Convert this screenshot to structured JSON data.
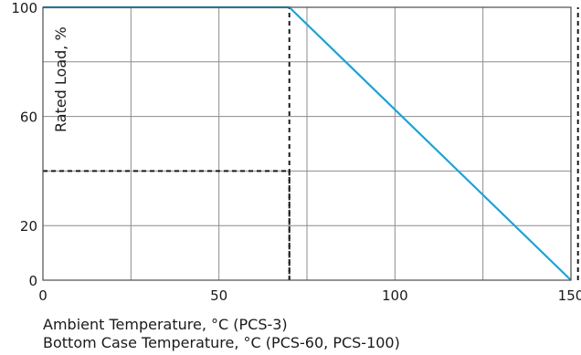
{
  "chart_data": {
    "type": "line",
    "title": "",
    "xlabel_lines": [
      "Ambient Temperature, °C (PCS-3)",
      "Bottom Case Temperature, °C (PCS-60, PCS-100)"
    ],
    "ylabel": "Rated Load, %",
    "xlim": [
      0,
      150
    ],
    "ylim": [
      0,
      100
    ],
    "x_ticks": [
      {
        "value": 0,
        "label": "0"
      },
      {
        "value": 50,
        "label": "50"
      },
      {
        "value": 100,
        "label": "100"
      },
      {
        "value": 150,
        "label": "150"
      }
    ],
    "y_ticks": [
      {
        "value": 0,
        "label": "0"
      },
      {
        "value": 20,
        "label": "20"
      },
      {
        "value": 60,
        "label": "60"
      },
      {
        "value": 100,
        "label": "100"
      }
    ],
    "x_gridlines": [
      0,
      25,
      50,
      75,
      100,
      125,
      150
    ],
    "y_gridlines": [
      0,
      20,
      40,
      60,
      80,
      100
    ],
    "grid": true,
    "series": [
      {
        "color": "#1aa3d9",
        "x": [
          0,
          70,
          150
        ],
        "y": [
          100,
          100,
          0
        ]
      }
    ],
    "reference_lines": [
      {
        "points": [
          [
            70,
            0
          ],
          [
            70,
            100
          ]
        ],
        "style": "dashed"
      },
      {
        "points": [
          [
            0,
            40
          ],
          [
            70,
            40
          ]
        ],
        "style": "dashed"
      },
      {
        "points": [
          [
            70,
            40
          ],
          [
            70,
            0
          ]
        ],
        "style": "dashed"
      },
      {
        "points": [
          [
            152,
            0
          ],
          [
            152,
            100
          ]
        ],
        "style": "dashed"
      }
    ]
  }
}
